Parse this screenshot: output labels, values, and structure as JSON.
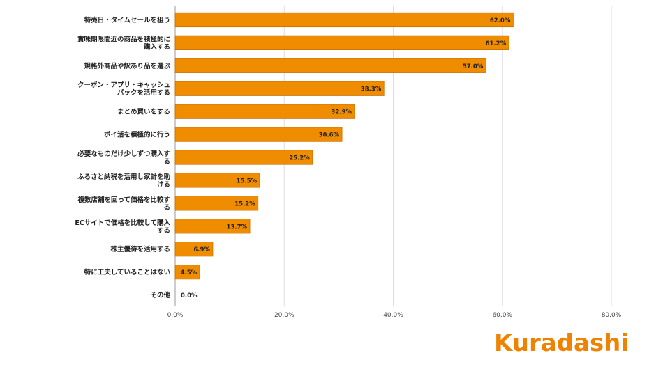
{
  "chart_data": {
    "type": "bar",
    "orientation": "horizontal",
    "categories": [
      "特売日・タイムセールを狙う",
      "賞味期限間近の商品を積極的に購入する",
      "規格外商品や訳あり品を選ぶ",
      "クーポン・アプリ・キャッシュバックを活用する",
      "まとめ買いをする",
      "ポイ活を積極的に行う",
      "必要なものだけ少しずつ購入する",
      "ふるさと納税を活用し家計を助ける",
      "複数店舗を回って価格を比較する",
      "ECサイトで価格を比較して購入する",
      "株主優待を活用する",
      "特に工夫していることはない",
      "その他"
    ],
    "label_lines": [
      [
        "特売日・タイムセールを狙う"
      ],
      [
        "賞味期限間近の商品を積極的に",
        "購入する"
      ],
      [
        "規格外商品や訳あり品を選ぶ"
      ],
      [
        "クーポン・アプリ・キャッシュ",
        "バックを活用する"
      ],
      [
        "まとめ買いをする"
      ],
      [
        "ポイ活を積極的に行う"
      ],
      [
        "必要なものだけ少しずつ購入す",
        "る"
      ],
      [
        "ふるさと納税を活用し家計を助",
        "ける"
      ],
      [
        "複数店舗を回って価格を比較す",
        "る"
      ],
      [
        "ECサイトで価格を比較して購入",
        "する"
      ],
      [
        "株主優待を活用する"
      ],
      [
        "特に工夫していることはない"
      ],
      [
        "その他"
      ]
    ],
    "values": [
      62.0,
      61.2,
      57.0,
      38.3,
      32.9,
      30.6,
      25.2,
      15.5,
      15.2,
      13.7,
      6.9,
      4.5,
      0.0
    ],
    "value_labels": [
      "62.0%",
      "61.2%",
      "57.0%",
      "38.3%",
      "32.9%",
      "30.6%",
      "25.2%",
      "15.5%",
      "15.2%",
      "13.7%",
      "6.9%",
      "4.5%",
      "0.0%"
    ],
    "xlim": [
      0,
      80
    ],
    "xticks": [
      0,
      20,
      40,
      60,
      80
    ],
    "xtick_labels": [
      "0.0%",
      "20.0%",
      "40.0%",
      "60.0%",
      "80.0%"
    ],
    "grid": true,
    "bar_color": "#f08c00",
    "bar_border_color": "#c86e00",
    "grid_color": "#dddddd",
    "label_color": "#222222"
  },
  "logo": {
    "text": "Kuradashi",
    "color": "#ef8200"
  }
}
